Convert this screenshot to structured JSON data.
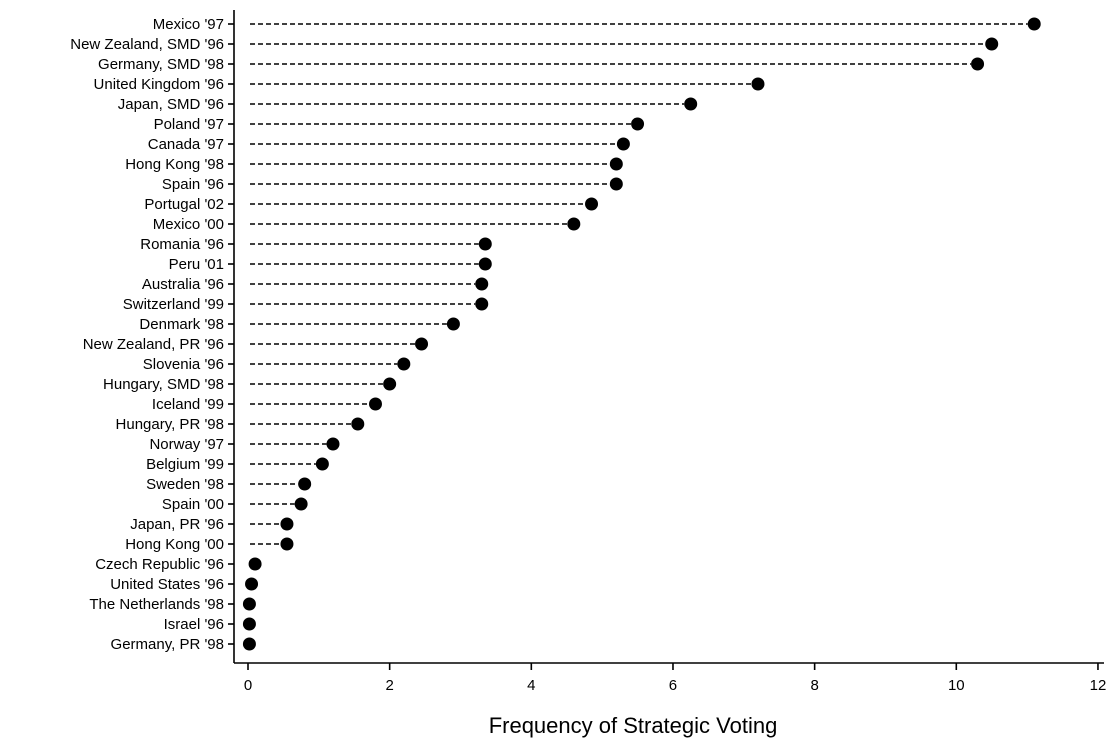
{
  "chart_data": {
    "type": "dot",
    "xlabel": "Frequency of Strategic Voting",
    "ylabel": "",
    "xlim": [
      0,
      12
    ],
    "xticks": [
      "0",
      "2",
      "4",
      "6",
      "8",
      "10",
      "12"
    ],
    "grid": false,
    "categories": [
      "Mexico '97",
      "New Zealand, SMD '96",
      "Germany, SMD '98",
      "United Kingdom '96",
      "Japan, SMD '96",
      "Poland '97",
      "Canada '97",
      "Hong Kong '98",
      "Spain '96",
      "Portugal '02",
      "Mexico '00",
      "Romania '96",
      "Peru '01",
      "Australia '96",
      "Switzerland '99",
      "Denmark '98",
      "New Zealand, PR '96",
      "Slovenia '96",
      "Hungary, SMD '98",
      "Iceland '99",
      "Hungary, PR '98",
      "Norway '97",
      "Belgium '99",
      "Sweden '98",
      "Spain '00",
      "Japan, PR '96",
      "Hong Kong '00",
      "Czech Republic '96",
      "United States '96",
      "The Netherlands '98",
      "Israel '96",
      "Germany, PR '98"
    ],
    "values": [
      11.1,
      10.5,
      10.3,
      7.2,
      6.25,
      5.5,
      5.3,
      5.2,
      5.2,
      4.85,
      4.6,
      3.35,
      3.35,
      3.3,
      3.3,
      2.9,
      2.45,
      2.2,
      2.0,
      1.8,
      1.55,
      1.2,
      1.05,
      0.8,
      0.75,
      0.55,
      0.55,
      0.1,
      0.05,
      0.02,
      0.02,
      0.02
    ]
  }
}
